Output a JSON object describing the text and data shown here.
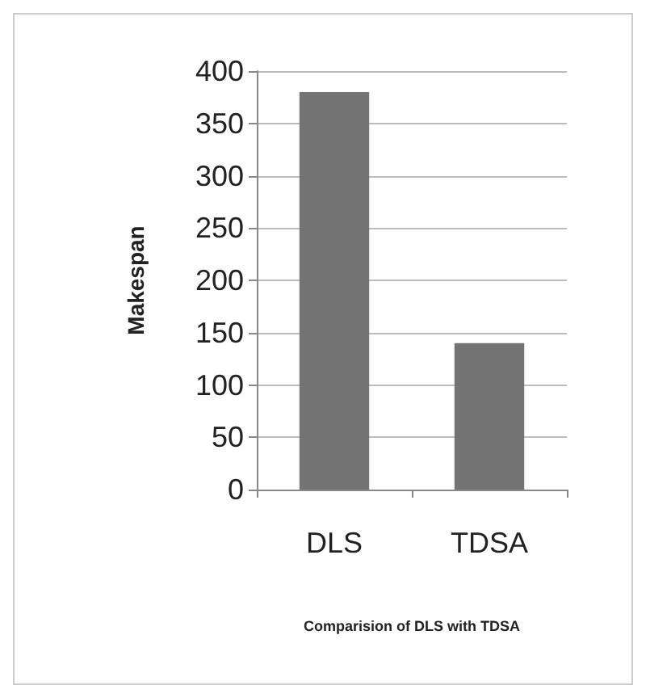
{
  "chart_data": {
    "type": "bar",
    "categories": [
      "DLS",
      "TDSA"
    ],
    "values": [
      380,
      140
    ],
    "color": "#737373",
    "ylim": [
      0,
      400
    ],
    "yticks": [
      0,
      50,
      100,
      150,
      200,
      250,
      300,
      350,
      400
    ],
    "grid": "y",
    "ylabel": "Makespan",
    "xlabel": "Comparision of DLS with TDSA"
  }
}
